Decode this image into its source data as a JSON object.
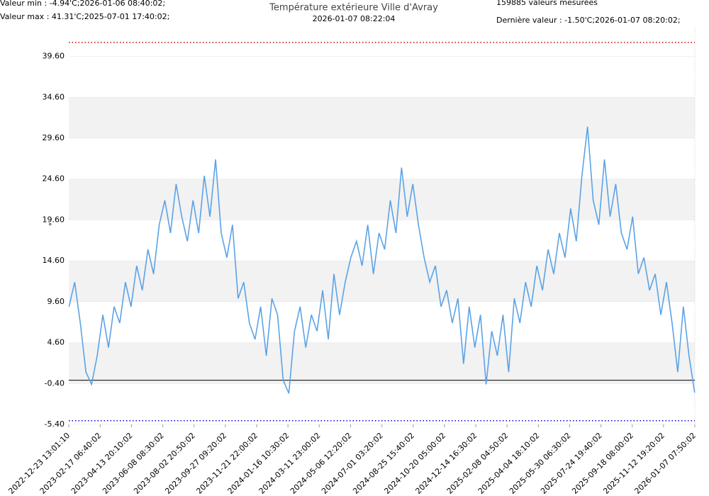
{
  "chart_data": {
    "type": "line",
    "title": "Température extérieure Ville d'Avray",
    "subtitle": "2026-01-07 08:22:04",
    "min_text": "Valeur min : -4.94'C;2026-01-06 08:40:02;",
    "max_text": "Valeur max : 41.31'C;2025-07-01 17:40:02;",
    "count_text": "159885 valeurs mesurées",
    "last_text": "Dernière valeur : -1.50'C;2026-01-07 08:20:02;",
    "y_label": "°",
    "max_line": {
      "value": 41.31,
      "color": "#cc0000"
    },
    "min_line": {
      "value": -4.94,
      "color": "#0000cc"
    },
    "xlim": [
      "2022-12-23 13:01:10",
      "2026-01-07 07:50:02"
    ],
    "xticks": [
      "2022-12-23 13:01:10",
      "2023-02-17 06:40:02",
      "2023-04-13 20:10:02",
      "2023-06-08 08:30:02",
      "2023-08-02 20:50:02",
      "2023-09-27 09:20:02",
      "2023-11-21 22:00:02",
      "2024-01-16 10:30:02",
      "2024-03-11 23:00:02",
      "2024-05-06 12:20:02",
      "2024-07-01 03:20:02",
      "2024-08-25 15:40:02",
      "2024-10-20 05:00:02",
      "2024-12-14 16:30:02",
      "2025-02-08 04:50:02",
      "2025-04-04 18:10:02",
      "2025-05-30 06:30:02",
      "2025-07-24 19:40:02",
      "2025-09-18 08:00:02",
      "2025-11-12 19:20:02",
      "2026-01-07 07:50:02"
    ],
    "ylim": [
      -5.4,
      43.2
    ],
    "yticks": [
      {
        "value": -5.4,
        "label": "-5.40"
      },
      {
        "value": -0.4,
        "label": "-0.40"
      },
      {
        "value": 4.6,
        "label": "4.60"
      },
      {
        "value": 9.6,
        "label": "9.60"
      },
      {
        "value": 14.6,
        "label": "14.60"
      },
      {
        "value": 19.6,
        "label": "19.60"
      },
      {
        "value": 24.6,
        "label": "24.60"
      },
      {
        "value": 29.6,
        "label": "29.60"
      },
      {
        "value": 34.6,
        "label": "34.60"
      },
      {
        "value": 39.6,
        "label": "39.60"
      }
    ],
    "x": [
      "2022-12-24",
      "2023-01-03",
      "2023-01-13",
      "2023-01-23",
      "2023-02-02",
      "2023-02-12",
      "2023-02-22",
      "2023-03-04",
      "2023-03-14",
      "2023-03-24",
      "2023-04-03",
      "2023-04-13",
      "2023-04-23",
      "2023-05-03",
      "2023-05-13",
      "2023-05-23",
      "2023-06-02",
      "2023-06-12",
      "2023-06-22",
      "2023-07-02",
      "2023-07-12",
      "2023-07-22",
      "2023-08-01",
      "2023-08-11",
      "2023-08-21",
      "2023-08-31",
      "2023-09-10",
      "2023-09-20",
      "2023-09-30",
      "2023-10-10",
      "2023-10-20",
      "2023-10-30",
      "2023-11-09",
      "2023-11-19",
      "2023-11-29",
      "2023-12-09",
      "2023-12-19",
      "2023-12-29",
      "2024-01-08",
      "2024-01-18",
      "2024-01-28",
      "2024-02-07",
      "2024-02-17",
      "2024-02-27",
      "2024-03-08",
      "2024-03-18",
      "2024-03-28",
      "2024-04-07",
      "2024-04-17",
      "2024-04-27",
      "2024-05-07",
      "2024-05-17",
      "2024-05-27",
      "2024-06-06",
      "2024-06-16",
      "2024-06-26",
      "2024-07-06",
      "2024-07-16",
      "2024-07-26",
      "2024-08-05",
      "2024-08-15",
      "2024-08-25",
      "2024-09-04",
      "2024-09-14",
      "2024-09-24",
      "2024-10-04",
      "2024-10-14",
      "2024-10-24",
      "2024-11-03",
      "2024-11-13",
      "2024-11-23",
      "2024-12-03",
      "2024-12-13",
      "2024-12-23",
      "2025-01-02",
      "2025-01-12",
      "2025-01-22",
      "2025-02-01",
      "2025-02-11",
      "2025-02-21",
      "2025-03-03",
      "2025-03-13",
      "2025-03-23",
      "2025-04-02",
      "2025-04-12",
      "2025-04-22",
      "2025-05-02",
      "2025-05-12",
      "2025-05-22",
      "2025-06-01",
      "2025-06-11",
      "2025-06-21",
      "2025-07-01",
      "2025-07-11",
      "2025-07-21",
      "2025-07-31",
      "2025-08-10",
      "2025-08-20",
      "2025-08-30",
      "2025-09-09",
      "2025-09-19",
      "2025-09-29",
      "2025-10-09",
      "2025-10-19",
      "2025-10-29",
      "2025-11-08",
      "2025-11-18",
      "2025-11-28",
      "2025-12-08",
      "2025-12-18",
      "2025-12-28",
      "2026-01-07"
    ],
    "series": [
      {
        "color": "#5ba3e6",
        "values": [
          9,
          12,
          7,
          1,
          -0.5,
          3,
          8,
          4,
          9,
          7,
          12,
          9,
          14,
          11,
          16,
          13,
          19,
          22,
          18,
          24,
          20,
          17,
          22,
          18,
          25,
          20,
          27,
          18,
          15,
          19,
          10,
          12,
          7,
          5,
          9,
          3,
          10,
          8,
          0,
          -1.6,
          6,
          9,
          4,
          8,
          6,
          11,
          5,
          13,
          8,
          12,
          15,
          17,
          14,
          19,
          13,
          18,
          16,
          22,
          18,
          26,
          20,
          24,
          19,
          15,
          12,
          14,
          9,
          11,
          7,
          10,
          2,
          9,
          4,
          8,
          -0.5,
          6,
          3,
          8,
          1,
          10,
          7,
          12,
          9,
          14,
          11,
          16,
          13,
          18,
          15,
          21,
          17,
          25,
          31,
          22,
          19,
          27,
          20,
          24,
          18,
          16,
          20,
          13,
          15,
          11,
          13,
          8,
          12,
          7,
          1,
          9,
          3,
          -1.5
        ]
      }
    ]
  }
}
